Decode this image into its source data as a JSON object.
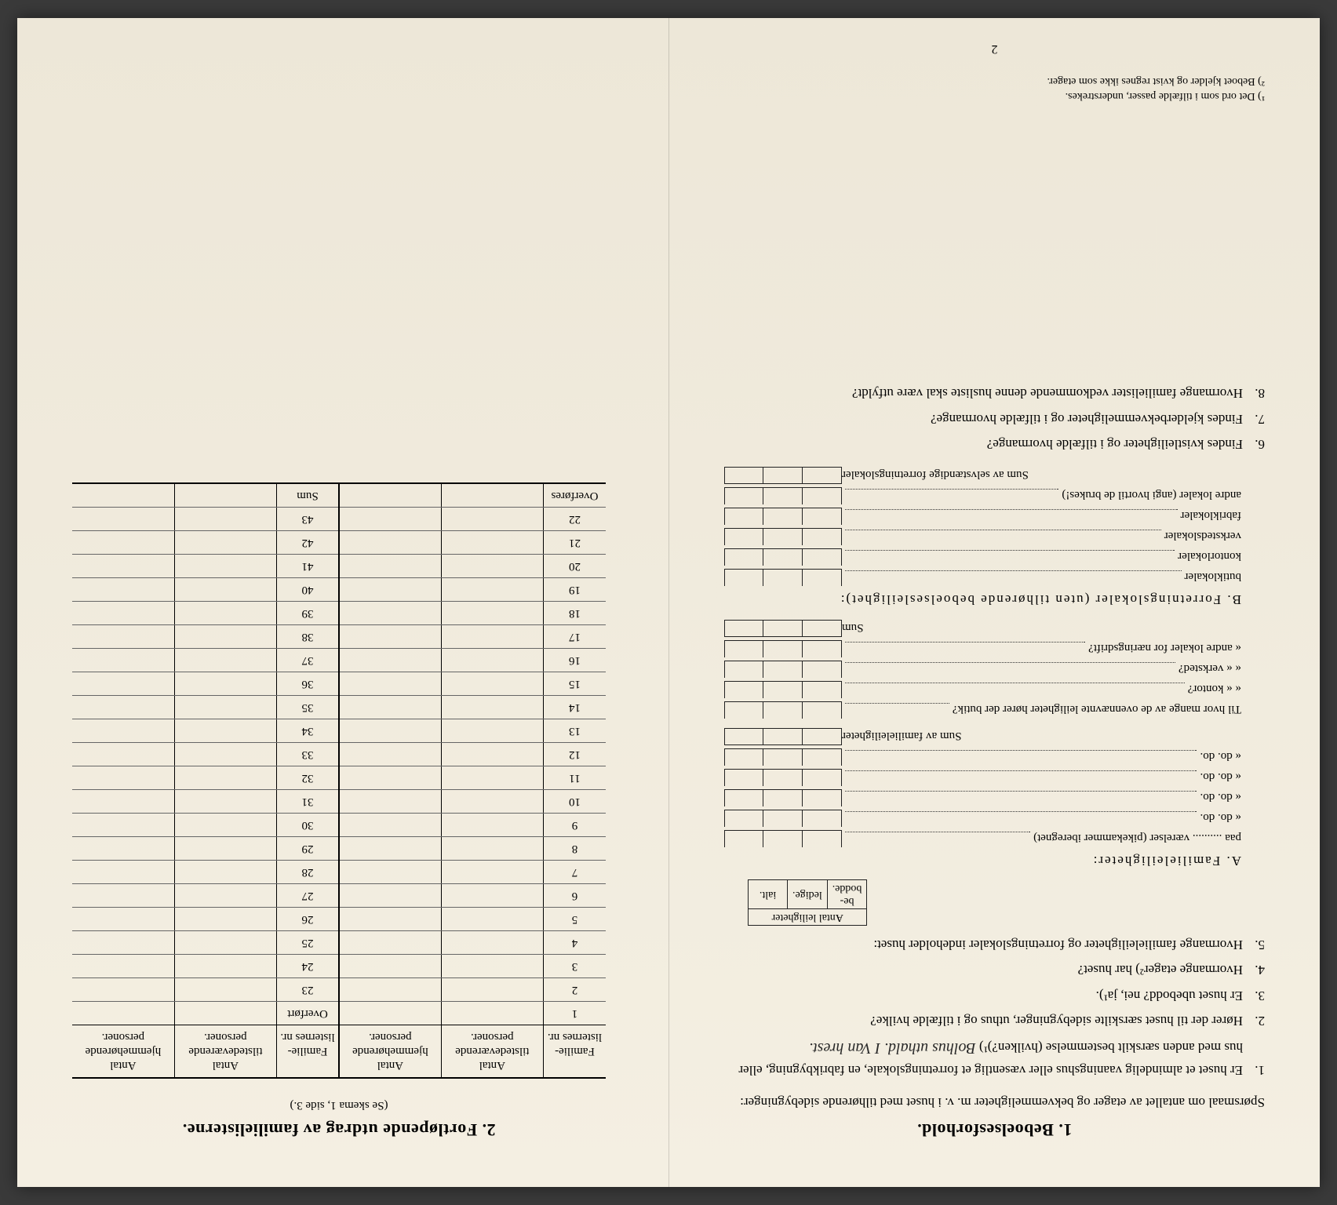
{
  "left": {
    "title": "1.  Beboelsesforhold.",
    "intro": "Spørsmaal om antallet av etager og bekvemmeligheter m. v. i huset med tilhørende sidebygninger:",
    "questions": [
      {
        "num": "1.",
        "text": "Er huset et almindelig vaaningshus eller væsentlig et forretningslokale, en fabrikbygning, eller hus med anden særskilt bestemmelse (hvilken?)¹)",
        "hand": "Bolhus uthald. I Van hrest."
      },
      {
        "num": "2.",
        "text": "Hører der til huset særskilte sidebygninger, uthus og i tilfælde hvilke?"
      },
      {
        "num": "3.",
        "text": "Er huset ubebodd?  nei,  ja¹)."
      },
      {
        "num": "4.",
        "text": "Hvormange etager²) har huset?"
      },
      {
        "num": "5.",
        "text": "Hvormange familieleiligheter og forretningslokaler indeholder huset:"
      }
    ],
    "miniHeader": {
      "h0": "Antal leiligheter",
      "h1": "be-\nbodde.",
      "h2": "ledige.",
      "h3": "ialt."
    },
    "secA": {
      "title": "A. Familieleiligheter:",
      "rows": [
        "paa .......... værelser (pikekammer iberegnet)",
        "«       do.       do.",
        "«       do.       do.",
        "«       do.       do.",
        "«       do.       do."
      ],
      "sum": "Sum av familieleiligheter"
    },
    "between": {
      "lead": "Til hvor mange av de ovennævnte leiligheter hører der butik?",
      "rows": [
        "«     «   kontor?",
        "«     «   verksted?",
        "«   andre lokaler for næringsdrift?"
      ],
      "sum": "Sum"
    },
    "secB": {
      "title": "B. Forretningslokaler (uten tilhørende beboelsesleilighet):",
      "rows": [
        "butiklokaler",
        "kontorlokaler",
        "verkstedslokaler",
        "fabriklokaler",
        "andre lokaler (angi hvortil de brukes!)"
      ],
      "sum": "Sum av selvstændige forretningslokaler"
    },
    "q6": "Findes kvistleiligheter og i tilfælde hvormange?",
    "q7": "Findes kjelderbekvemmeligheter og i tilfælde hvormange?",
    "q8": "Hvormange familielister vedkommende denne husliste skal være utfyldt?",
    "fn1": "¹) Det ord som i tilfælde passer, understrekes.",
    "fn2": "²) Beboet kjelder og kvist regnes ikke som etager.",
    "pageNum": "2"
  },
  "right": {
    "title": "2.  Fortløpende utdrag av familielisterne.",
    "subtitle": "(Se skema 1, side 3.)",
    "headers": [
      "Familie-\nlisternes\nnr.",
      "Antal\ntilstedeværende\npersoner.",
      "Antal\nhjemmehørende\npersoner.",
      "Familie-\nlisternes\nnr.",
      "Antal\ntilstedeværende\npersoner.",
      "Antal\nhjemmehørende\npersoner."
    ],
    "leftRows": [
      "1",
      "2",
      "3",
      "4",
      "5",
      "6",
      "7",
      "8",
      "9",
      "10",
      "11",
      "12",
      "13",
      "14",
      "15",
      "16",
      "17",
      "18",
      "19",
      "20",
      "21",
      "22"
    ],
    "leftFooter": "Overføres",
    "rightTop": "Overført",
    "rightRows": [
      "23",
      "24",
      "25",
      "26",
      "27",
      "28",
      "29",
      "30",
      "31",
      "32",
      "33",
      "34",
      "35",
      "36",
      "37",
      "38",
      "39",
      "40",
      "41",
      "42",
      "43"
    ],
    "rightFooter": "Sum"
  }
}
